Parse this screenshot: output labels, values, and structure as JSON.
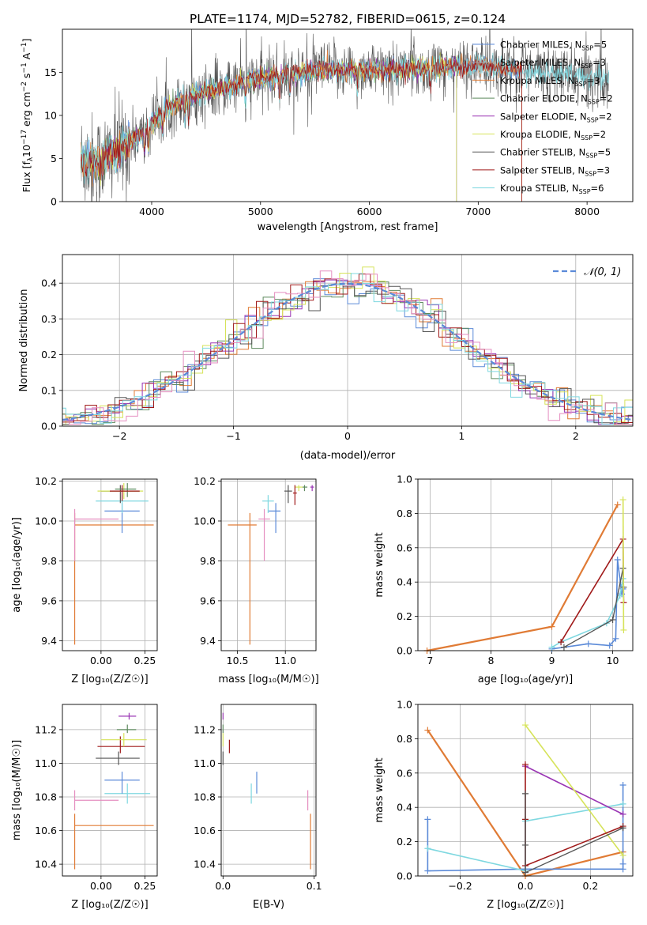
{
  "colors": {
    "chabrier_miles": "#5b8ad8",
    "salpeter_miles": "#aaaaaa",
    "kroupa_miles": "#e07b35",
    "chabrier_elodie": "#5e8a5e",
    "salpeter_elodie": "#9a35b4",
    "kroupa_elodie": "#d6e35a",
    "chabrier_stelib": "#555555",
    "salpeter_stelib": "#a01a1a",
    "kroupa_stelib": "#7fd8e0",
    "pink": "#e58ec0",
    "gauss": "#5b8ad8",
    "grid": "#b0b0b0"
  },
  "chart_data": [
    {
      "id": "spectrum",
      "type": "line",
      "title": "PLATE=1174, MJD=52782, FIBERID=0615, z=0.124",
      "xlabel": "wavelength [Angstrom, rest frame]",
      "ylabel_pre": "Flux [f",
      "ylabel_sub": "λ",
      "ylabel_mid": "10",
      "ylabel_sup": "−17",
      "ylabel_post": " erg cm",
      "ylabel_sup2": "−2",
      "ylabel_post2": " s",
      "ylabel_sup3": "−1",
      "ylabel_post3": " A",
      "ylabel_sup4": "−1",
      "ylabel_end": "]",
      "xlim": [
        3180,
        8420
      ],
      "ylim": [
        0,
        20
      ],
      "xticks": [
        4000,
        5000,
        6000,
        7000,
        8000
      ],
      "yticks": [
        0,
        5,
        10,
        15
      ],
      "grid": false,
      "legend_position": "top-right",
      "continuum_x": [
        3350,
        3500,
        3700,
        3900,
        4100,
        4300,
        4600,
        4900,
        5200,
        5500,
        5800,
        6100,
        6400,
        6700,
        7000,
        7300,
        7600,
        7900,
        8200
      ],
      "continuum_y": [
        4.8,
        4.4,
        6.0,
        7.8,
        10.4,
        12.0,
        13.0,
        14.0,
        14.7,
        15.2,
        15.3,
        15.3,
        15.4,
        15.6,
        15.8,
        15.4,
        15.0,
        14.6,
        14.5
      ],
      "series": [
        {
          "name": "Chabrier MILES",
          "nssp": "5",
          "color": "chabrier_miles",
          "xmin": 3350,
          "xmax": 7400
        },
        {
          "name": "Salpeter MILES",
          "nssp": "3",
          "color": "salpeter_miles",
          "xmin": 3350,
          "xmax": 7400
        },
        {
          "name": "Kroupa MILES",
          "nssp": "3",
          "color": "kroupa_miles",
          "xmin": 3350,
          "xmax": 7400
        },
        {
          "name": "Chabrier ELODIE",
          "nssp": "2",
          "color": "chabrier_elodie",
          "xmin": 3350,
          "xmax": 6800
        },
        {
          "name": "Salpeter ELODIE",
          "nssp": "2",
          "color": "salpeter_elodie",
          "xmin": 3350,
          "xmax": 6800
        },
        {
          "name": "Kroupa ELODIE",
          "nssp": "2",
          "color": "kroupa_elodie",
          "xmin": 3350,
          "xmax": 6800
        },
        {
          "name": "Chabrier STELIB",
          "nssp": "5",
          "color": "chabrier_stelib",
          "xmin": 3350,
          "xmax": 8200
        },
        {
          "name": "Salpeter STELIB",
          "nssp": "3",
          "color": "salpeter_stelib",
          "xmin": 3350,
          "xmax": 7400
        },
        {
          "name": "Kroupa STELIB",
          "nssp": "6",
          "color": "kroupa_stelib",
          "xmin": 3350,
          "xmax": 8200
        }
      ]
    },
    {
      "id": "residual_hist",
      "type": "line",
      "xlabel": "(data-model)/error",
      "ylabel": "Normed distribution",
      "xlim": [
        -2.5,
        2.5
      ],
      "ylim": [
        0,
        0.48
      ],
      "xticks": [
        -2,
        -1,
        0,
        1,
        2
      ],
      "xticklabels": [
        "−2",
        "−1",
        "0",
        "1",
        "2"
      ],
      "yticks": [
        0.0,
        0.1,
        0.2,
        0.3,
        0.4
      ],
      "yticklabels": [
        "0.0",
        "0.1",
        "0.2",
        "0.3",
        "0.4"
      ],
      "grid": true,
      "legend_position": "top-right",
      "legend_label": "𝒩(0, 1)",
      "bin_width": 0.1,
      "series_colors": [
        "chabrier_miles",
        "kroupa_miles",
        "chabrier_elodie",
        "salpeter_elodie",
        "kroupa_elodie",
        "chabrier_stelib",
        "salpeter_stelib",
        "kroupa_stelib",
        "pink"
      ]
    },
    {
      "id": "age_vs_Z",
      "type": "scatter",
      "xlabel": "Z [log₁₀(Z/Z☉)]",
      "ylabel": "age  [log₁₀(age/yr)]",
      "xlim": [
        -0.22,
        0.32
      ],
      "ylim": [
        9.35,
        10.21
      ],
      "xticks": [
        0.0,
        0.25
      ],
      "xticklabels": [
        "0.00",
        "0.25"
      ],
      "yticks": [
        9.4,
        9.6,
        9.8,
        10.0,
        10.2
      ],
      "yticklabels": [
        "9.4",
        "9.6",
        "9.8",
        "10.0",
        "10.2"
      ],
      "grid": true,
      "points": [
        {
          "x": -0.15,
          "y": 9.98,
          "xlo": -0.15,
          "xhi": 0.3,
          "ylo": 9.38,
          "yhi": 10.04,
          "color": "kroupa_miles"
        },
        {
          "x": -0.15,
          "y": 10.01,
          "xlo": -0.15,
          "xhi": 0.1,
          "ylo": 9.8,
          "yhi": 10.06,
          "color": "pink"
        },
        {
          "x": 0.12,
          "y": 10.05,
          "xlo": 0.02,
          "xhi": 0.22,
          "ylo": 9.94,
          "yhi": 10.09,
          "color": "chabrier_miles"
        },
        {
          "x": 0.12,
          "y": 10.1,
          "xlo": -0.03,
          "xhi": 0.27,
          "ylo": 10.04,
          "yhi": 10.13,
          "color": "kroupa_stelib"
        },
        {
          "x": 0.11,
          "y": 10.15,
          "xlo": 0.0,
          "xhi": 0.22,
          "ylo": 10.09,
          "yhi": 10.18,
          "color": "chabrier_stelib"
        },
        {
          "x": 0.13,
          "y": 10.15,
          "xlo": -0.02,
          "xhi": 0.24,
          "ylo": 10.11,
          "yhi": 10.19,
          "color": "kroupa_elodie"
        },
        {
          "x": 0.15,
          "y": 10.16,
          "xlo": 0.08,
          "xhi": 0.2,
          "ylo": 10.12,
          "yhi": 10.19,
          "color": "chabrier_elodie"
        },
        {
          "x": 0.12,
          "y": 10.15,
          "xlo": 0.05,
          "xhi": 0.22,
          "ylo": 10.1,
          "yhi": 10.18,
          "color": "salpeter_stelib"
        }
      ]
    },
    {
      "id": "age_vs_mass",
      "type": "scatter",
      "xlabel": "mass [log₁₀(M/M☉)]",
      "ylabel": "",
      "xlim": [
        10.33,
        11.32
      ],
      "ylim": [
        9.35,
        10.21
      ],
      "xticks": [
        10.5,
        11.0
      ],
      "xticklabels": [
        "10.5",
        "11.0"
      ],
      "yticks": [
        9.4,
        9.6,
        9.8,
        10.0,
        10.2
      ],
      "yticklabels": [
        "9.4",
        "9.6",
        "9.8",
        "10.0",
        "10.2"
      ],
      "grid": true,
      "points": [
        {
          "x": 10.63,
          "y": 9.98,
          "xlo": 10.4,
          "xhi": 10.7,
          "ylo": 9.38,
          "yhi": 10.04,
          "color": "kroupa_miles"
        },
        {
          "x": 10.78,
          "y": 10.01,
          "xlo": 10.72,
          "xhi": 10.84,
          "ylo": 9.8,
          "yhi": 10.06,
          "color": "pink"
        },
        {
          "x": 10.9,
          "y": 10.05,
          "xlo": 10.82,
          "xhi": 10.95,
          "ylo": 9.94,
          "yhi": 10.09,
          "color": "chabrier_miles"
        },
        {
          "x": 10.82,
          "y": 10.1,
          "xlo": 10.76,
          "xhi": 10.88,
          "ylo": 10.04,
          "yhi": 10.13,
          "color": "kroupa_stelib"
        },
        {
          "x": 11.03,
          "y": 10.15,
          "xlo": 10.99,
          "xhi": 11.07,
          "ylo": 10.09,
          "yhi": 10.18,
          "color": "chabrier_stelib"
        },
        {
          "x": 11.14,
          "y": 10.17,
          "xlo": 11.1,
          "xhi": 11.18,
          "ylo": 10.15,
          "yhi": 10.18,
          "color": "kroupa_elodie"
        },
        {
          "x": 11.2,
          "y": 10.17,
          "xlo": 11.18,
          "xhi": 11.23,
          "ylo": 10.15,
          "yhi": 10.18,
          "color": "chabrier_elodie"
        },
        {
          "x": 11.28,
          "y": 10.17,
          "xlo": 11.26,
          "xhi": 11.3,
          "ylo": 10.15,
          "yhi": 10.18,
          "color": "salpeter_elodie"
        },
        {
          "x": 11.1,
          "y": 10.14,
          "xlo": 11.08,
          "xhi": 11.12,
          "ylo": 10.08,
          "yhi": 10.18,
          "color": "salpeter_stelib"
        }
      ]
    },
    {
      "id": "weight_vs_age",
      "type": "line",
      "xlabel": "age  [log₁₀(age/yr)]",
      "ylabel": "mass weight",
      "xlim": [
        6.8,
        10.33
      ],
      "ylim": [
        0,
        1.0
      ],
      "xticks": [
        7,
        8,
        9,
        10
      ],
      "yticks": [
        0.0,
        0.2,
        0.4,
        0.6,
        0.8,
        1.0
      ],
      "yticklabels": [
        "0.0",
        "0.2",
        "0.4",
        "0.6",
        "0.8",
        "1.0"
      ],
      "grid": true,
      "series": [
        {
          "color": "kroupa_miles",
          "x": [
            6.95,
            9.0,
            10.08
          ],
          "y": [
            0.0,
            0.14,
            0.85
          ],
          "width": 2.2
        },
        {
          "color": "chabrier_miles",
          "x": [
            9.0,
            9.6,
            9.95,
            10.05,
            10.08,
            10.15,
            10.17
          ],
          "y": [
            0.01,
            0.04,
            0.03,
            0.07,
            0.53,
            0.33,
            0.36
          ],
          "width": 1.6
        },
        {
          "color": "kroupa_stelib",
          "x": [
            9.0,
            9.15,
            9.9,
            10.12,
            10.17
          ],
          "y": [
            0.02,
            0.05,
            0.16,
            0.32,
            0.42
          ],
          "width": 1.6
        },
        {
          "color": "salpeter_stelib",
          "x": [
            9.15,
            10.17,
            10.18
          ],
          "y": [
            0.05,
            0.65,
            0.28
          ],
          "width": 1.6
        },
        {
          "color": "chabrier_stelib",
          "x": [
            9.2,
            10.0,
            10.17,
            10.18
          ],
          "y": [
            0.02,
            0.18,
            0.48,
            0.37
          ],
          "width": 1.4
        },
        {
          "color": "kroupa_elodie",
          "x": [
            10.17,
            10.18
          ],
          "y": [
            0.88,
            0.12
          ],
          "width": 1.6
        }
      ]
    },
    {
      "id": "mass_vs_Z",
      "type": "scatter",
      "xlabel": "Z [log₁₀(Z/Z☉)]",
      "ylabel": "mass [log₁₀(M/M☉)]",
      "xlim": [
        -0.22,
        0.32
      ],
      "ylim": [
        10.33,
        11.35
      ],
      "xticks": [
        0.0,
        0.25
      ],
      "xticklabels": [
        "0.00",
        "0.25"
      ],
      "yticks": [
        10.4,
        10.6,
        10.8,
        11.0,
        11.2
      ],
      "yticklabels": [
        "10.4",
        "10.6",
        "10.8",
        "11.0",
        "11.2"
      ],
      "grid": true,
      "points": [
        {
          "x": -0.15,
          "y": 10.63,
          "xlo": -0.15,
          "xhi": 0.3,
          "ylo": 10.37,
          "yhi": 10.7,
          "color": "kroupa_miles"
        },
        {
          "x": -0.15,
          "y": 10.78,
          "xlo": -0.15,
          "xhi": 0.1,
          "ylo": 10.72,
          "yhi": 10.84,
          "color": "pink"
        },
        {
          "x": 0.15,
          "y": 10.82,
          "xlo": 0.02,
          "xhi": 0.28,
          "ylo": 10.76,
          "yhi": 10.88,
          "color": "kroupa_stelib"
        },
        {
          "x": 0.12,
          "y": 10.9,
          "xlo": 0.02,
          "xhi": 0.22,
          "ylo": 10.82,
          "yhi": 10.95,
          "color": "chabrier_miles"
        },
        {
          "x": 0.1,
          "y": 11.03,
          "xlo": -0.03,
          "xhi": 0.22,
          "ylo": 10.99,
          "yhi": 11.07,
          "color": "chabrier_stelib"
        },
        {
          "x": 0.11,
          "y": 11.1,
          "xlo": -0.02,
          "xhi": 0.25,
          "ylo": 11.06,
          "yhi": 11.16,
          "color": "salpeter_stelib"
        },
        {
          "x": 0.13,
          "y": 11.14,
          "xlo": 0.0,
          "xhi": 0.26,
          "ylo": 11.1,
          "yhi": 11.18,
          "color": "kroupa_elodie"
        },
        {
          "x": 0.15,
          "y": 11.2,
          "xlo": 0.09,
          "xhi": 0.2,
          "ylo": 11.18,
          "yhi": 11.23,
          "color": "chabrier_elodie"
        },
        {
          "x": 0.16,
          "y": 11.28,
          "xlo": 0.1,
          "xhi": 0.2,
          "ylo": 11.26,
          "yhi": 11.3,
          "color": "salpeter_elodie"
        }
      ]
    },
    {
      "id": "mass_vs_ebv",
      "type": "scatter",
      "xlabel": "E(B-V)",
      "ylabel": "",
      "xlim": [
        -0.002,
        0.102
      ],
      "ylim": [
        10.33,
        11.35
      ],
      "xticks": [
        0.0,
        0.1
      ],
      "xticklabels": [
        "0.0",
        "0.1"
      ],
      "yticks": [
        10.4,
        10.6,
        10.8,
        11.0,
        11.2
      ],
      "yticklabels": [
        "10.4",
        "10.6",
        "10.8",
        "11.0",
        "11.2"
      ],
      "grid": true,
      "points": [
        {
          "x": 0.0,
          "y": 11.28,
          "ylo": 11.26,
          "yhi": 11.3,
          "color": "salpeter_elodie"
        },
        {
          "x": 0.0,
          "y": 11.2,
          "ylo": 11.18,
          "yhi": 11.23,
          "color": "chabrier_elodie"
        },
        {
          "x": 0.0,
          "y": 11.14,
          "ylo": 11.1,
          "yhi": 11.18,
          "color": "kroupa_elodie"
        },
        {
          "x": 0.0,
          "y": 11.03,
          "ylo": 10.99,
          "yhi": 11.07,
          "color": "chabrier_stelib"
        },
        {
          "x": 0.007,
          "y": 11.1,
          "ylo": 11.06,
          "yhi": 11.14,
          "color": "salpeter_stelib"
        },
        {
          "x": 0.031,
          "y": 10.82,
          "ylo": 10.76,
          "yhi": 10.88,
          "color": "kroupa_stelib"
        },
        {
          "x": 0.037,
          "y": 10.9,
          "ylo": 10.82,
          "yhi": 10.95,
          "color": "chabrier_miles"
        },
        {
          "x": 0.093,
          "y": 10.78,
          "ylo": 10.72,
          "yhi": 10.84,
          "color": "pink"
        },
        {
          "x": 0.096,
          "y": 10.63,
          "ylo": 10.37,
          "yhi": 10.7,
          "color": "kroupa_miles"
        }
      ]
    },
    {
      "id": "weight_vs_Z",
      "type": "line",
      "xlabel": "Z [log₁₀(Z/Z☉)]",
      "ylabel": "mass weight",
      "xlim": [
        -0.33,
        0.33
      ],
      "ylim": [
        0,
        1.0
      ],
      "xticks": [
        -0.2,
        0.0,
        0.2
      ],
      "xticklabels": [
        "−0.2",
        "0.0",
        "0.2"
      ],
      "yticks": [
        0.0,
        0.2,
        0.4,
        0.6,
        0.8,
        1.0
      ],
      "yticklabels": [
        "0.0",
        "0.2",
        "0.4",
        "0.6",
        "0.8",
        "1.0"
      ],
      "grid": true,
      "series": [
        {
          "color": "kroupa_miles",
          "x": [
            -0.3,
            0.0,
            0.3
          ],
          "y": [
            0.85,
            0.0,
            0.14
          ],
          "width": 2.2
        },
        {
          "color": "chabrier_miles",
          "x": [
            -0.3,
            -0.3,
            0.0,
            0.3,
            0.3,
            0.3
          ],
          "y": [
            0.33,
            0.03,
            0.04,
            0.04,
            0.53,
            0.07
          ],
          "width": 1.6
        },
        {
          "color": "kroupa_stelib",
          "x": [
            -0.3,
            0.0,
            0.0,
            0.3
          ],
          "y": [
            0.16,
            0.03,
            0.32,
            0.42
          ],
          "width": 1.6
        },
        {
          "color": "salpeter_elodie",
          "x": [
            0.0,
            0.3
          ],
          "y": [
            0.64,
            0.36
          ],
          "width": 1.6
        },
        {
          "color": "kroupa_elodie",
          "x": [
            0.0,
            0.3
          ],
          "y": [
            0.88,
            0.12
          ],
          "width": 1.6
        },
        {
          "color": "salpeter_stelib",
          "x": [
            0.0,
            0.0,
            0.0,
            0.3
          ],
          "y": [
            0.65,
            0.33,
            0.06,
            0.29
          ],
          "width": 1.6
        },
        {
          "color": "chabrier_stelib",
          "x": [
            0.0,
            0.0,
            0.0,
            0.3
          ],
          "y": [
            0.48,
            0.18,
            0.02,
            0.28
          ],
          "width": 1.4
        }
      ]
    }
  ]
}
